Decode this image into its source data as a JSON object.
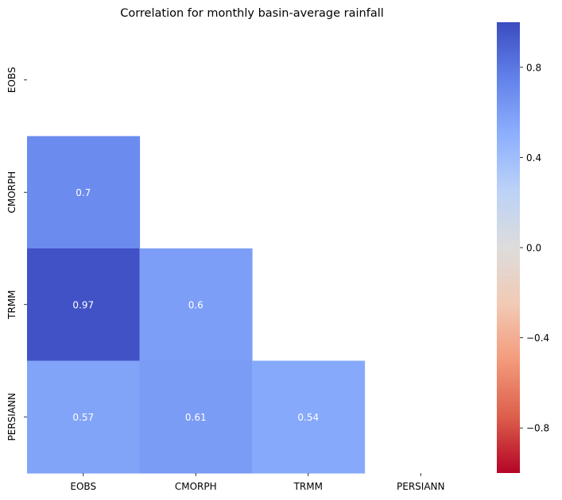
{
  "chart_data": {
    "type": "heatmap",
    "title": "Correlation for monthly basin-average rainfall",
    "xlabel": "",
    "ylabel": "",
    "x_categories": [
      "EOBS",
      "CMORPH",
      "TRMM",
      "PERSIANN"
    ],
    "y_categories": [
      "EOBS",
      "CMORPH",
      "TRMM",
      "PERSIANN"
    ],
    "mask": "upper-triangle-including-diagonal",
    "cells": [
      {
        "row": "CMORPH",
        "col": "EOBS",
        "value": 0.7,
        "label": "0.7"
      },
      {
        "row": "TRMM",
        "col": "EOBS",
        "value": 0.97,
        "label": "0.97"
      },
      {
        "row": "TRMM",
        "col": "CMORPH",
        "value": 0.6,
        "label": "0.6"
      },
      {
        "row": "PERSIANN",
        "col": "EOBS",
        "value": 0.57,
        "label": "0.57"
      },
      {
        "row": "PERSIANN",
        "col": "CMORPH",
        "value": 0.61,
        "label": "0.61"
      },
      {
        "row": "PERSIANN",
        "col": "TRMM",
        "value": 0.54,
        "label": "0.54"
      }
    ],
    "colormap": "coolwarm_r",
    "colorbar": {
      "vmin": -1,
      "vmax": 1,
      "ticks": [
        0.8,
        0.4,
        0.0,
        -0.4,
        -0.8
      ],
      "tick_labels": [
        "0.8",
        "0.4",
        "0.0",
        "−0.4",
        "−0.8"
      ],
      "position": "right"
    }
  }
}
